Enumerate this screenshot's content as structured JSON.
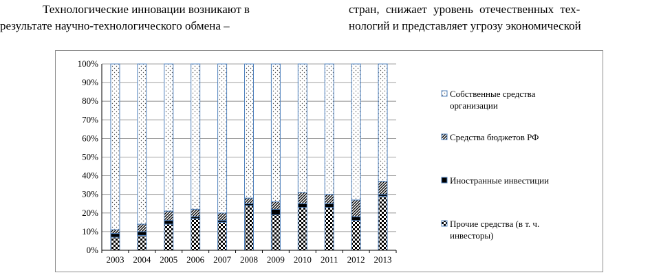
{
  "text": {
    "left_line1": "Технологические инновации возникают в",
    "left_line2": "результате научно-технологического обмена –",
    "right_line1": "стран, снижает уровень отечественных тех-",
    "right_line2": "нологий и представляет угрозу экономической"
  },
  "chart_data": {
    "type": "bar",
    "stacked": true,
    "percent": true,
    "categories": [
      "2003",
      "2004",
      "2005",
      "2006",
      "2007",
      "2008",
      "2009",
      "2010",
      "2011",
      "2012",
      "2013"
    ],
    "y_ticks": [
      "0%",
      "10%",
      "20%",
      "30%",
      "40%",
      "50%",
      "60%",
      "70%",
      "80%",
      "90%",
      "100%"
    ],
    "ylim": [
      0,
      100
    ],
    "grid": true,
    "legend_position": "right",
    "series": [
      {
        "name": "Прочие средства (в т. ч. инвесторы)",
        "pattern": "checker",
        "values": [
          7,
          8,
          14,
          17,
          15,
          24,
          19,
          23,
          23,
          16,
          29
        ]
      },
      {
        "name": "Иностранные инвестиции",
        "pattern": "solid-black",
        "values": [
          2,
          2,
          2,
          1,
          1,
          1,
          3,
          2,
          2,
          2,
          1
        ]
      },
      {
        "name": "Средства бюджетов РФ",
        "pattern": "diagonal",
        "values": [
          2,
          4,
          5,
          4,
          4,
          3,
          4,
          6,
          5,
          9,
          7
        ]
      },
      {
        "name": "Собственные средства организации",
        "pattern": "dots",
        "values": [
          89,
          86,
          79,
          78,
          80,
          72,
          74,
          69,
          70,
          73,
          63
        ]
      }
    ],
    "legend": [
      {
        "lines": [
          "Собственные средства",
          "организации"
        ],
        "pattern": "dots"
      },
      {
        "lines": [
          "Средства бюджетов РФ"
        ],
        "pattern": "diagonal"
      },
      {
        "lines": [
          "Иностранные инвестиции"
        ],
        "pattern": "solid-black"
      },
      {
        "lines": [
          "Прочие средства (в т. ч.",
          "инвесторы)"
        ],
        "pattern": "checker"
      }
    ],
    "colors": {
      "bar_outline": "#4f81bd",
      "grid": "#7f7f7f",
      "frame": "#8c8c8c"
    }
  }
}
